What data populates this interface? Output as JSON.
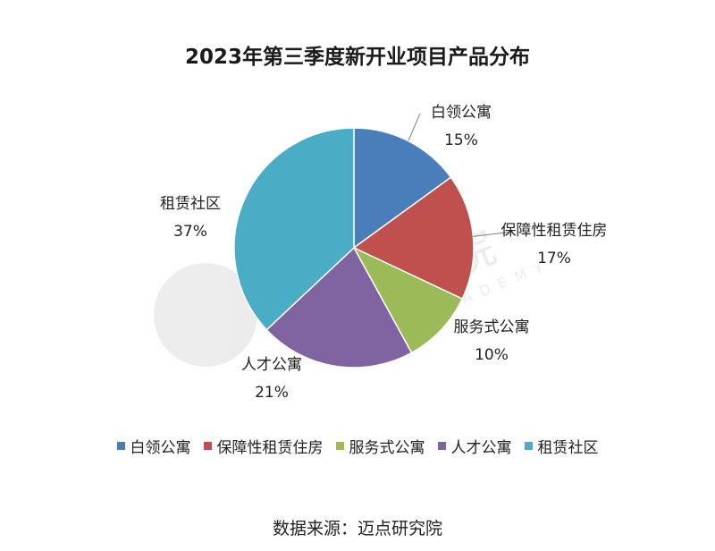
{
  "page": {
    "title": "2023年第三季度新开业项目产品分布",
    "source": "数据来源：迈点研究院"
  },
  "watermark": {
    "brand": "迈点研究院",
    "sub": "MEADIN ACADEMY"
  },
  "chart_data": {
    "type": "pie",
    "title": "2023年第三季度新开业项目产品分布",
    "legend_position": "bottom",
    "slices": [
      {
        "label": "白领公寓",
        "value": 15,
        "display": "15%",
        "color": "#4a7ebb"
      },
      {
        "label": "保障性租赁住房",
        "value": 17,
        "display": "17%",
        "color": "#c0504d"
      },
      {
        "label": "服务式公寓",
        "value": 10,
        "display": "10%",
        "color": "#9bbb59"
      },
      {
        "label": "人才公寓",
        "value": 21,
        "display": "21%",
        "color": "#8064a2"
      },
      {
        "label": "租赁社区",
        "value": 37,
        "display": "37%",
        "color": "#4bacc6"
      }
    ]
  }
}
